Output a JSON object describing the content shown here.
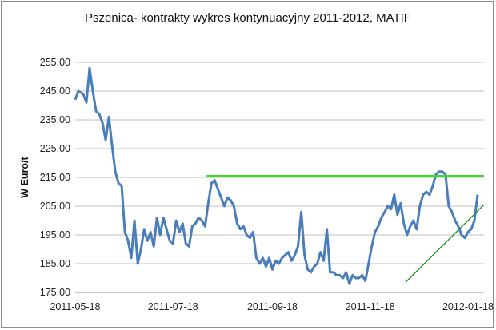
{
  "chart_data": {
    "type": "line",
    "title": "Pszenica- kontrakty wykres kontynuacyjny 2011-2012,  MATIF",
    "ylabel": "W Euro/t",
    "xlabel": "",
    "ylim": [
      175,
      255
    ],
    "yticks": [
      "255,00",
      "245,00",
      "235,00",
      "225,00",
      "215,00",
      "205,00",
      "195,00",
      "185,00",
      "175,00"
    ],
    "ytick_values": [
      255,
      245,
      235,
      225,
      215,
      205,
      195,
      185,
      175
    ],
    "xticks": [
      "2011-05-18",
      "2011-07-18",
      "2011-09-18",
      "2011-11-18",
      "2012-01-18"
    ],
    "xtick_dates": [
      "2011-05-18",
      "2011-07-18",
      "2011-09-18",
      "2011-11-18",
      "2012-01-18"
    ],
    "xlim": [
      "2011-05-18",
      "2012-01-28"
    ],
    "grid": "horizontal",
    "colors": {
      "line": "#4a7ebb",
      "resistance": "#33dd22",
      "support": "#1c8a1c",
      "grid": "#bfbfbf"
    },
    "series": [
      {
        "x": [
          "2011-05-18",
          "2011-05-20",
          "2011-05-23",
          "2011-05-25",
          "2011-05-27",
          "2011-05-29",
          "2011-05-31",
          "2011-06-02",
          "2011-06-04",
          "2011-06-06",
          "2011-06-08",
          "2011-06-10",
          "2011-06-12",
          "2011-06-14",
          "2011-06-16",
          "2011-06-18",
          "2011-06-20",
          "2011-06-22",
          "2011-06-24",
          "2011-06-26",
          "2011-06-28",
          "2011-06-30",
          "2011-07-02",
          "2011-07-04",
          "2011-07-06",
          "2011-07-08",
          "2011-07-10",
          "2011-07-12",
          "2011-07-14",
          "2011-07-16",
          "2011-07-18",
          "2011-07-20",
          "2011-07-22",
          "2011-07-24",
          "2011-07-26",
          "2011-07-28",
          "2011-07-30",
          "2011-08-01",
          "2011-08-03",
          "2011-08-05",
          "2011-08-07",
          "2011-08-09",
          "2011-08-11",
          "2011-08-13",
          "2011-08-15",
          "2011-08-17",
          "2011-08-19",
          "2011-08-21",
          "2011-08-23",
          "2011-08-25",
          "2011-08-27",
          "2011-08-29",
          "2011-08-31",
          "2011-09-02",
          "2011-09-04",
          "2011-09-06",
          "2011-09-08",
          "2011-09-10",
          "2011-09-12",
          "2011-09-14",
          "2011-09-16",
          "2011-09-18",
          "2011-09-20",
          "2011-09-22",
          "2011-09-24",
          "2011-09-26",
          "2011-09-28",
          "2011-09-30",
          "2011-10-02",
          "2011-10-04",
          "2011-10-06",
          "2011-10-08",
          "2011-10-10",
          "2011-10-12",
          "2011-10-14",
          "2011-10-16",
          "2011-10-18",
          "2011-10-20",
          "2011-10-22",
          "2011-10-24",
          "2011-10-26",
          "2011-10-28",
          "2011-10-30",
          "2011-11-01",
          "2011-11-03",
          "2011-11-05",
          "2011-11-07",
          "2011-11-09",
          "2011-11-11",
          "2011-11-13",
          "2011-11-15",
          "2011-11-17",
          "2011-11-19",
          "2011-11-21",
          "2011-11-23",
          "2011-11-25",
          "2011-11-27",
          "2011-11-29",
          "2011-12-01",
          "2011-12-03",
          "2011-12-05",
          "2011-12-07",
          "2011-12-09",
          "2011-12-11",
          "2011-12-13",
          "2011-12-15",
          "2011-12-17",
          "2011-12-19",
          "2011-12-21",
          "2011-12-23",
          "2011-12-25",
          "2011-12-27",
          "2011-12-29",
          "2011-12-31",
          "2012-01-02",
          "2012-01-04",
          "2012-01-06",
          "2012-01-08",
          "2012-01-10",
          "2012-01-12",
          "2012-01-14",
          "2012-01-16",
          "2012-01-18",
          "2012-01-20",
          "2012-01-22",
          "2012-01-24"
        ],
        "y": [
          242,
          245,
          244,
          241,
          253,
          245,
          238,
          237,
          234,
          228,
          236,
          226,
          217,
          213,
          212,
          196,
          193,
          187,
          200,
          185,
          190,
          197,
          193,
          196,
          191,
          201,
          195,
          201,
          197,
          193,
          192,
          200,
          196,
          199,
          192,
          191,
          198,
          199,
          201,
          200,
          198,
          206,
          213,
          214,
          211,
          208,
          205,
          208,
          207,
          205,
          199,
          197,
          198,
          195,
          194,
          196,
          187,
          185,
          187,
          184,
          187,
          183,
          186,
          185,
          187,
          188,
          189,
          186,
          188,
          191,
          203,
          188,
          183,
          182,
          184,
          185,
          189,
          186,
          197,
          182,
          182,
          181,
          181,
          180,
          182,
          178,
          181,
          180,
          180,
          181,
          179,
          185,
          191,
          196,
          198,
          201,
          203,
          205,
          204,
          209,
          202,
          206,
          199,
          195,
          198,
          200,
          197,
          205,
          209,
          210,
          209,
          212,
          216,
          217,
          217,
          216,
          205,
          203,
          200,
          198,
          195,
          194,
          196,
          197,
          200,
          209
        ]
      }
    ],
    "trendlines": [
      {
        "name": "",
        "x": [
          "2011-08-08",
          "2012-01-28"
        ],
        "y": [
          215.5,
          215.5
        ]
      },
      {
        "name": "",
        "x": [
          "2011-12-10",
          "2012-01-28"
        ],
        "y": [
          178.5,
          205.5
        ]
      }
    ]
  }
}
